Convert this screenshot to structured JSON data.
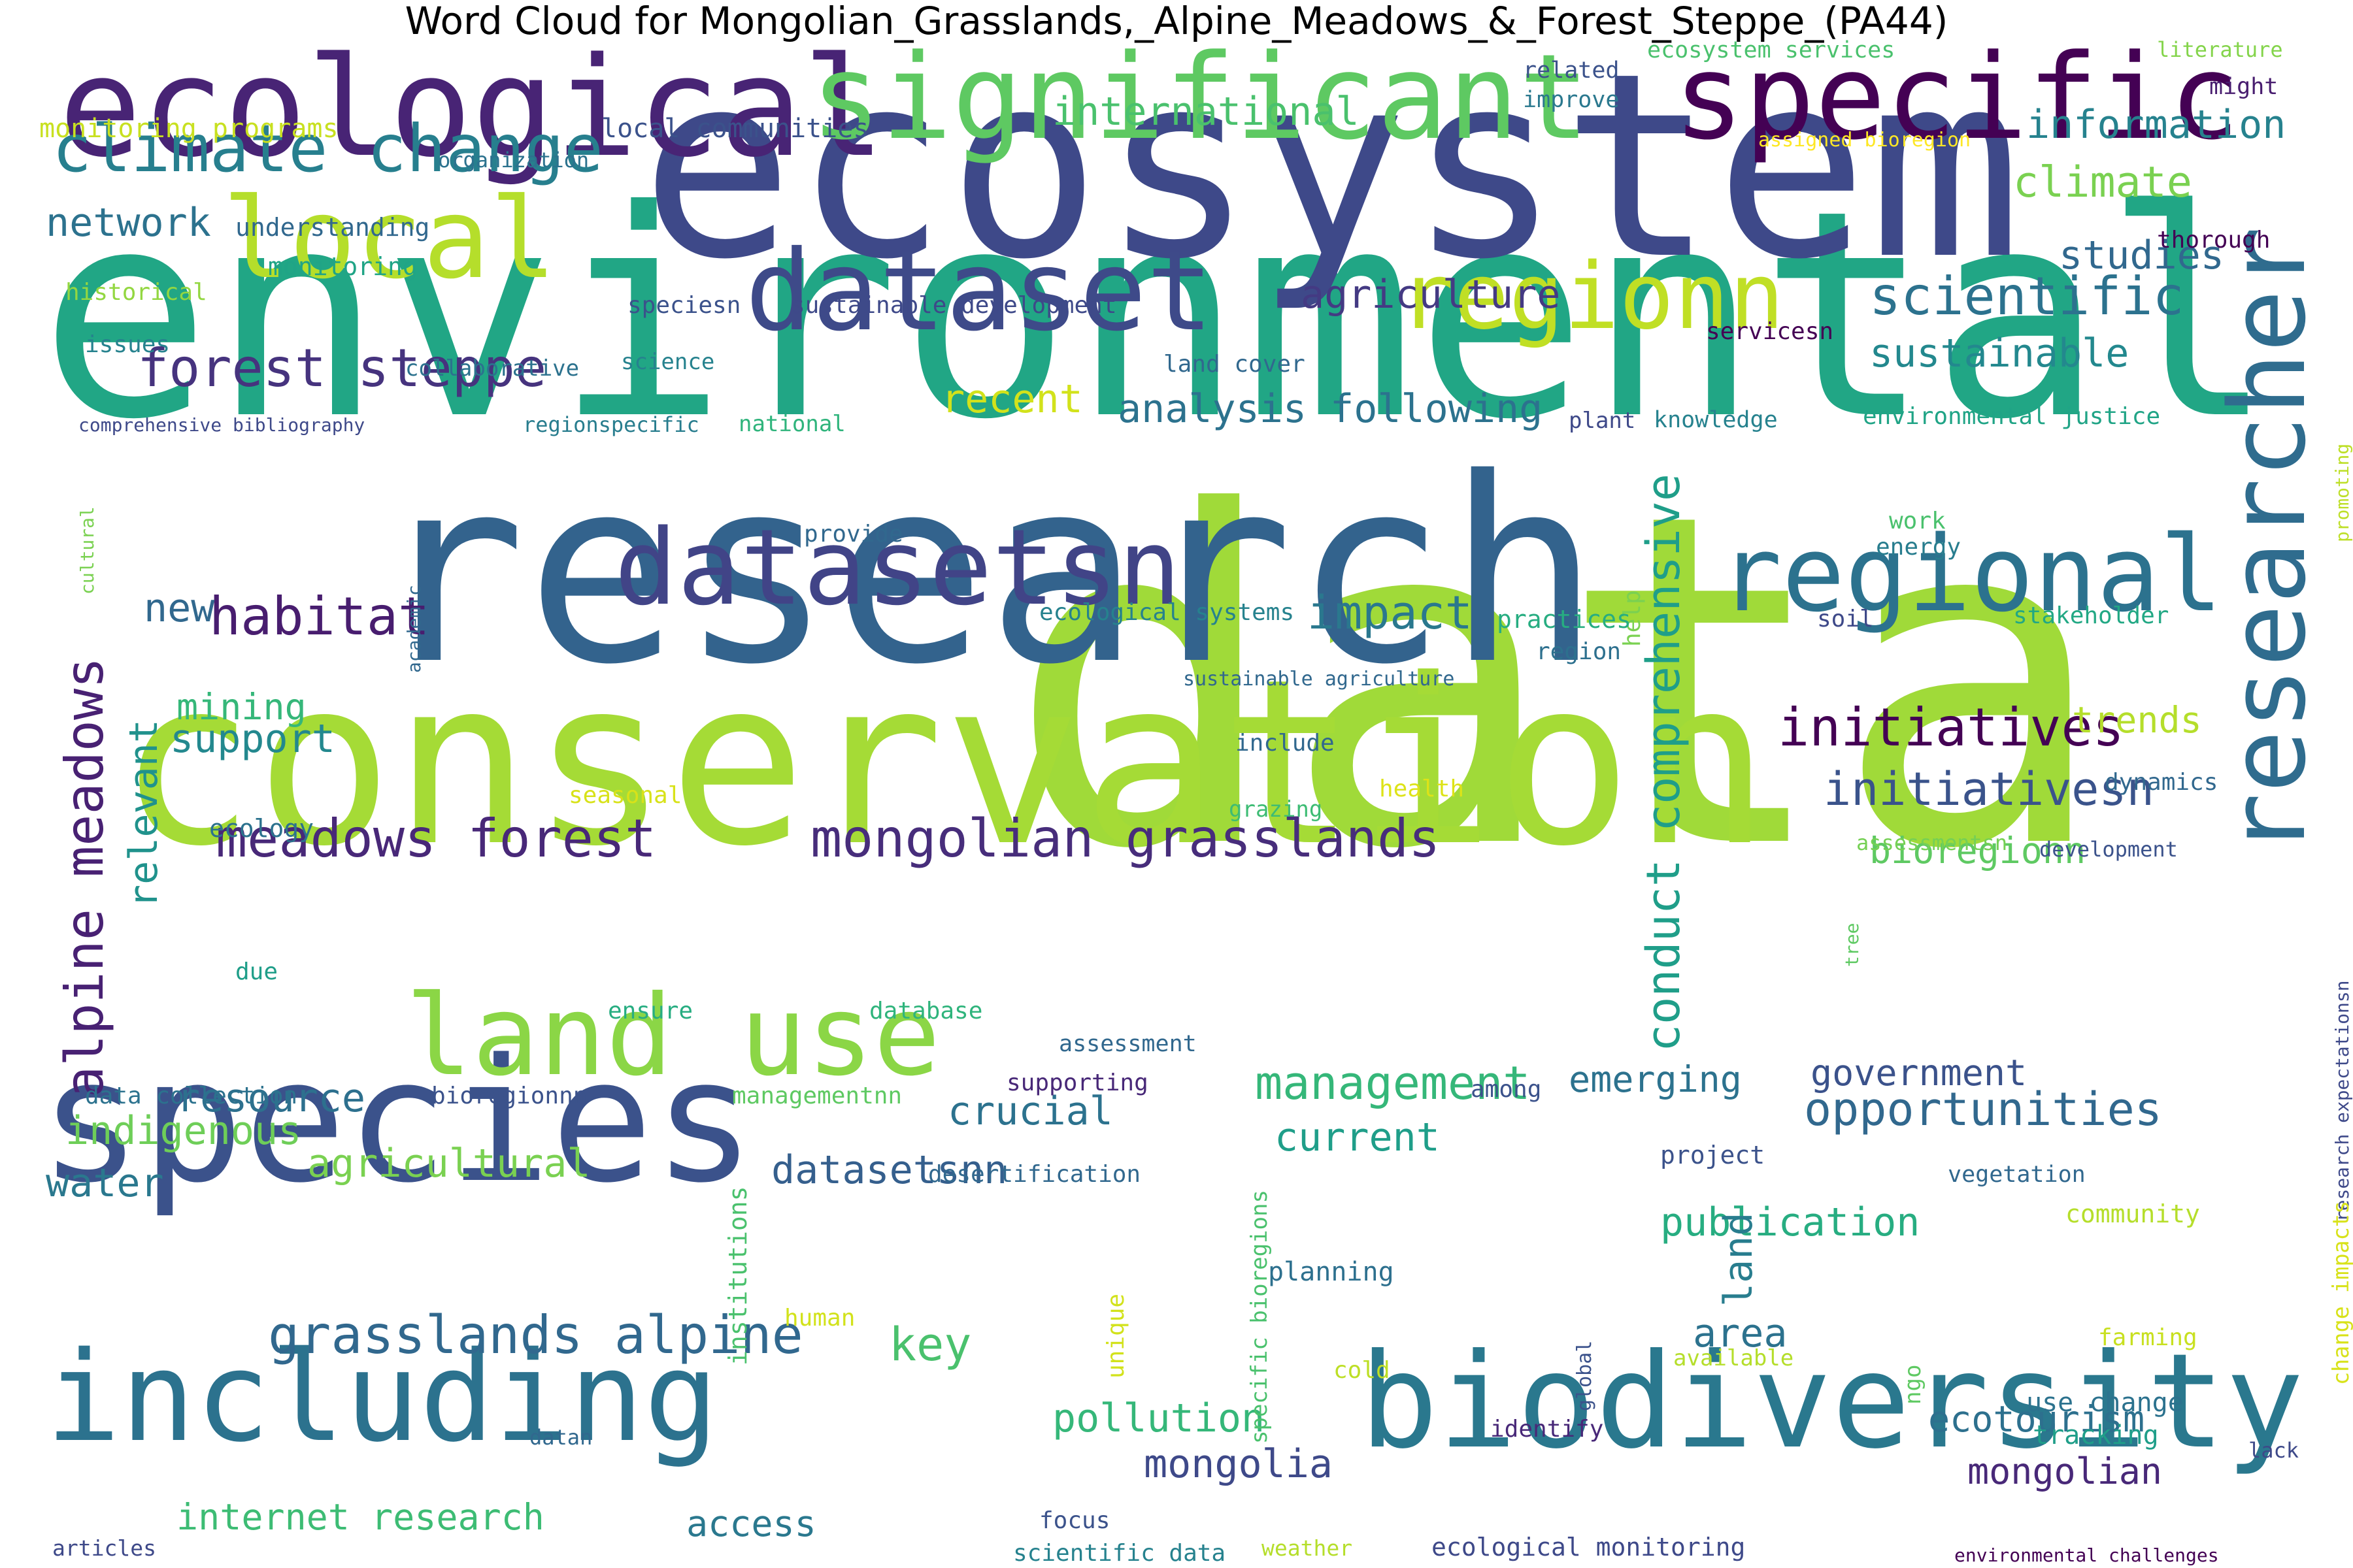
{
  "title": "Word Cloud for Mongolian_Grasslands,_Alpine_Meadows_&_Forest_Steppe_(PA44)",
  "words": [
    {
      "text": "environmental",
      "color": "#21a685"
    },
    {
      "text": "data",
      "color": "#a0da39"
    },
    {
      "text": "research",
      "color": "#33638d"
    },
    {
      "text": "conservation",
      "color": "#a5db36"
    },
    {
      "text": "ecosystem",
      "color": "#3e4989"
    },
    {
      "text": "species",
      "color": "#3b528b"
    },
    {
      "text": "biodiversity",
      "color": "#2a788e"
    },
    {
      "text": "including",
      "color": "#2c728e"
    },
    {
      "text": "ecological",
      "color": "#482475"
    },
    {
      "text": "significant",
      "color": "#5ec962"
    },
    {
      "text": "specific",
      "color": "#440154"
    },
    {
      "text": "dataset",
      "color": "#3e4a89"
    },
    {
      "text": "local",
      "color": "#b5de2b"
    },
    {
      "text": "regionn",
      "color": "#c0df25"
    },
    {
      "text": "regional",
      "color": "#2c728e"
    },
    {
      "text": "datasetsn",
      "color": "#414487"
    },
    {
      "text": "land use",
      "color": "#8bd646"
    },
    {
      "text": "researcher",
      "color": "#2f6c8e"
    },
    {
      "text": "climate change",
      "color": "#277f8e"
    },
    {
      "text": "forest steppe",
      "color": "#46337e"
    },
    {
      "text": "habitat",
      "color": "#481d6f"
    },
    {
      "text": "alpine meadows",
      "color": "#482173"
    },
    {
      "text": "initiatives",
      "color": "#440154"
    },
    {
      "text": "initiativesn",
      "color": "#3a538b"
    },
    {
      "text": "mongolian grasslands",
      "color": "#472d7b"
    },
    {
      "text": "meadows forest",
      "color": "#482878"
    },
    {
      "text": "grasslands alpine",
      "color": "#31688e"
    },
    {
      "text": "management",
      "color": "#35b779"
    },
    {
      "text": "opportunities",
      "color": "#31688e"
    },
    {
      "text": "scientific",
      "color": "#2c728e"
    },
    {
      "text": "sustainable",
      "color": "#23888e"
    },
    {
      "text": "agriculture",
      "color": "#443a83"
    },
    {
      "text": "impact",
      "color": "#2a788e"
    },
    {
      "text": "conduct comprehensive",
      "color": "#1f9e89"
    },
    {
      "text": "international",
      "color": "#4ac16d"
    },
    {
      "text": "information",
      "color": "#26828e"
    },
    {
      "text": "climate",
      "color": "#7ad151"
    },
    {
      "text": "studies",
      "color": "#31688e"
    },
    {
      "text": "network",
      "color": "#2c728e"
    },
    {
      "text": "recent",
      "color": "#d2e21b"
    },
    {
      "text": "support",
      "color": "#23888e"
    },
    {
      "text": "mining",
      "color": "#35b779"
    },
    {
      "text": "relevant",
      "color": "#20928c"
    },
    {
      "text": "new",
      "color": "#31688e"
    },
    {
      "text": "resource",
      "color": "#2d708e"
    },
    {
      "text": "indigenous",
      "color": "#6ece58"
    },
    {
      "text": "agricultural",
      "color": "#7ad151"
    },
    {
      "text": "water",
      "color": "#2a788e"
    },
    {
      "text": "crucial",
      "color": "#2c728e"
    },
    {
      "text": "datasetsnn",
      "color": "#355f8d"
    },
    {
      "text": "current",
      "color": "#1f9e89"
    },
    {
      "text": "emerging",
      "color": "#2c728e"
    },
    {
      "text": "government",
      "color": "#3b528b"
    },
    {
      "text": "bioregionn",
      "color": "#5ec962"
    },
    {
      "text": "trends",
      "color": "#b5de2b"
    },
    {
      "text": "key",
      "color": "#4ac16d"
    },
    {
      "text": "pollution",
      "color": "#35b779"
    },
    {
      "text": "mongolia",
      "color": "#3e4989"
    },
    {
      "text": "access",
      "color": "#2a788e"
    },
    {
      "text": "ecotourism",
      "color": "#2d708e"
    },
    {
      "text": "mongolian",
      "color": "#482878"
    },
    {
      "text": "publication",
      "color": "#27ad81"
    },
    {
      "text": "area",
      "color": "#2c728e"
    },
    {
      "text": "internet research",
      "color": "#3dbc74"
    },
    {
      "text": "land",
      "color": "#287d8e"
    },
    {
      "text": "monitoring programs",
      "color": "#c8e020"
    },
    {
      "text": "local communities",
      "color": "#3b528b"
    },
    {
      "text": "ecosystem services",
      "color": "#4ac16d"
    },
    {
      "text": "literature",
      "color": "#84d44b"
    },
    {
      "text": "might",
      "color": "#481d6f"
    },
    {
      "text": "related",
      "color": "#3b528b"
    },
    {
      "text": "improve",
      "color": "#2a788e"
    },
    {
      "text": "organization",
      "color": "#2c728e"
    },
    {
      "text": "assigned bioregion",
      "color": "#fde725"
    },
    {
      "text": "understanding",
      "color": "#31688e"
    },
    {
      "text": "monitoring",
      "color": "#20a486"
    },
    {
      "text": "historical",
      "color": "#93d741"
    },
    {
      "text": "thorough",
      "color": "#440154"
    },
    {
      "text": "promoting",
      "color": "#bddf26"
    },
    {
      "text": "issues",
      "color": "#26828e"
    },
    {
      "text": "cultural",
      "color": "#7ad151"
    },
    {
      "text": "speciesn",
      "color": "#3b528b"
    },
    {
      "text": "sustainable development",
      "color": "#3e4989"
    },
    {
      "text": "collaborative",
      "color": "#2c728e"
    },
    {
      "text": "science",
      "color": "#26828e"
    },
    {
      "text": "servicesn",
      "color": "#440154"
    },
    {
      "text": "land cover",
      "color": "#31688e"
    },
    {
      "text": "comprehensive bibliography",
      "color": "#3e4989"
    },
    {
      "text": "regionspecific",
      "color": "#287d8e"
    },
    {
      "text": "national",
      "color": "#2fb47c"
    },
    {
      "text": "analysis following",
      "color": "#2c728e"
    },
    {
      "text": "plant",
      "color": "#3e4989"
    },
    {
      "text": "knowledge",
      "color": "#26828e"
    },
    {
      "text": "environmental justice",
      "color": "#20a486"
    },
    {
      "text": "academic",
      "color": "#31688e"
    },
    {
      "text": "provide",
      "color": "#31688e"
    },
    {
      "text": "help",
      "color": "#7ad151"
    },
    {
      "text": "work",
      "color": "#4ac16d"
    },
    {
      "text": "energy",
      "color": "#287d8e"
    },
    {
      "text": "ecological systems",
      "color": "#26828e"
    },
    {
      "text": "practices",
      "color": "#27ad81"
    },
    {
      "text": "soil",
      "color": "#3e4989"
    },
    {
      "text": "stakeholder",
      "color": "#22a884"
    },
    {
      "text": "region",
      "color": "#2d708e"
    },
    {
      "text": "sustainable agriculture",
      "color": "#31688e"
    },
    {
      "text": "include",
      "color": "#31688e"
    },
    {
      "text": "health",
      "color": "#dde318"
    },
    {
      "text": "dynamics",
      "color": "#31688e"
    },
    {
      "text": "seasonal",
      "color": "#d8e219"
    },
    {
      "text": "grazing",
      "color": "#3dbc74"
    },
    {
      "text": "ecology",
      "color": "#2c728e"
    },
    {
      "text": "assessmentsn",
      "color": "#75d054"
    },
    {
      "text": "development",
      "color": "#3b528b"
    },
    {
      "text": "tree",
      "color": "#5ec962"
    },
    {
      "text": "research expectationsn",
      "color": "#3e4989"
    },
    {
      "text": "due",
      "color": "#1f9e89"
    },
    {
      "text": "ensure",
      "color": "#27ad81"
    },
    {
      "text": "database",
      "color": "#2fb47c"
    },
    {
      "text": "assessment",
      "color": "#31688e"
    },
    {
      "text": "data collection",
      "color": "#2c728e"
    },
    {
      "text": "bioregionnn",
      "color": "#3b528b"
    },
    {
      "text": "managementnn",
      "color": "#5ec962"
    },
    {
      "text": "supporting",
      "color": "#482878"
    },
    {
      "text": "among",
      "color": "#3b528b"
    },
    {
      "text": "desertification",
      "color": "#31688e"
    },
    {
      "text": "project",
      "color": "#3b528b"
    },
    {
      "text": "vegetation",
      "color": "#31688e"
    },
    {
      "text": "community",
      "color": "#b5de2b"
    },
    {
      "text": "institutions",
      "color": "#4ac16d"
    },
    {
      "text": "specific bioregions",
      "color": "#4ac16d"
    },
    {
      "text": "unique",
      "color": "#d2e21b"
    },
    {
      "text": "change impacts",
      "color": "#d8e219"
    },
    {
      "text": "human",
      "color": "#d2e21b"
    },
    {
      "text": "planning",
      "color": "#2d708e"
    },
    {
      "text": "global",
      "color": "#3b528b"
    },
    {
      "text": "ngo",
      "color": "#5ec962"
    },
    {
      "text": "available",
      "color": "#b5de2b"
    },
    {
      "text": "farming",
      "color": "#c8e020"
    },
    {
      "text": "cold",
      "color": "#bddf26"
    },
    {
      "text": "use change",
      "color": "#2c728e"
    },
    {
      "text": "tracking",
      "color": "#1f9e89"
    },
    {
      "text": "identify",
      "color": "#482878"
    },
    {
      "text": "datan",
      "color": "#31688e"
    },
    {
      "text": "lack",
      "color": "#3e4989"
    },
    {
      "text": "focus",
      "color": "#3b528b"
    },
    {
      "text": "articles",
      "color": "#3e4989"
    },
    {
      "text": "scientific data",
      "color": "#26828e"
    },
    {
      "text": "weather",
      "color": "#b5de2b"
    },
    {
      "text": "ecological monitoring",
      "color": "#3e4989"
    },
    {
      "text": "environmental challenges",
      "color": "#440154"
    }
  ]
}
